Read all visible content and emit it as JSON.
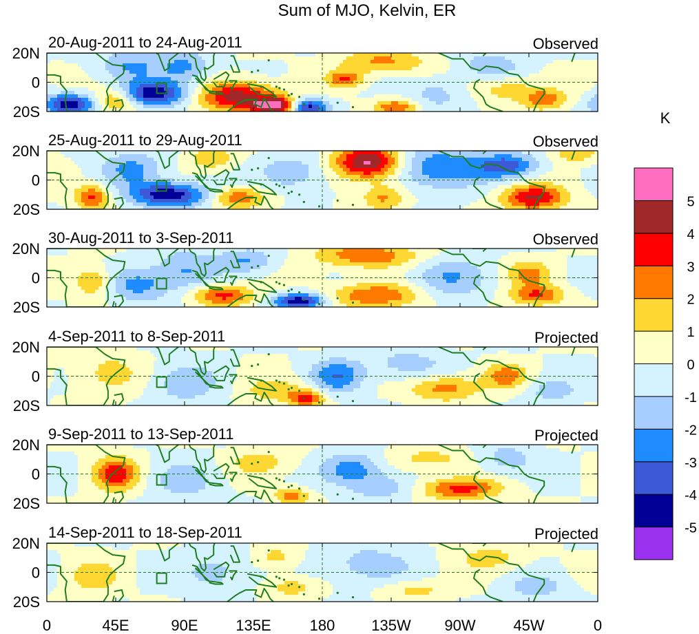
{
  "chart_data": {
    "type": "heatmap",
    "title": "Sum of MJO, Kelvin, ER",
    "colorbar": {
      "unit": "K",
      "levels": [
        -5,
        -4,
        -3,
        -2,
        -1,
        0,
        1,
        2,
        3,
        4,
        5
      ],
      "tick_labels": [
        "-5",
        "-4",
        "-3",
        "-2",
        "-1",
        "0",
        "1",
        "2",
        "3",
        "4",
        "5"
      ],
      "colors": [
        "#9a32f0",
        "#000096",
        "#3c5ad8",
        "#1e8cff",
        "#a6cfff",
        "#d4f3ff",
        "#ffffc8",
        "#ffd732",
        "#ff7800",
        "#ff0000",
        "#a02828",
        "#ff6ec0"
      ]
    },
    "x_ticks": [
      "0",
      "45E",
      "90E",
      "135E",
      "180",
      "135W",
      "90W",
      "45W",
      "0"
    ],
    "x_tick_values": [
      0,
      45,
      90,
      135,
      180,
      225,
      270,
      315,
      360
    ],
    "y_ticks": [
      "20N",
      "0",
      "20S"
    ],
    "y_tick_values": [
      20,
      0,
      -20
    ],
    "xlim": [
      0,
      360
    ],
    "ylim": [
      -20,
      20
    ],
    "panels": [
      {
        "date_range": "20-Aug-2011 to 24-Aug-2011",
        "label": "Observed",
        "blobs": [
          {
            "lon": 15,
            "lat": -15,
            "amp": -4.8,
            "sx": 12,
            "sy": 5
          },
          {
            "lon": 45,
            "lat": -12,
            "amp": 2.6,
            "sx": 10,
            "sy": 6
          },
          {
            "lon": 70,
            "lat": -8,
            "amp": -4.6,
            "sx": 16,
            "sy": 6
          },
          {
            "lon": 55,
            "lat": 12,
            "amp": -2.0,
            "sx": 15,
            "sy": 8
          },
          {
            "lon": 90,
            "lat": 10,
            "amp": -2.2,
            "sx": 12,
            "sy": 8
          },
          {
            "lon": 125,
            "lat": -10,
            "amp": 4.6,
            "sx": 18,
            "sy": 7
          },
          {
            "lon": 150,
            "lat": -16,
            "amp": 5.4,
            "sx": 10,
            "sy": 4
          },
          {
            "lon": 170,
            "lat": -17,
            "amp": -4.8,
            "sx": 9,
            "sy": 4
          },
          {
            "lon": 195,
            "lat": 2,
            "amp": 3.0,
            "sx": 8,
            "sy": 4
          },
          {
            "lon": 220,
            "lat": 14,
            "amp": 2.2,
            "sx": 20,
            "sy": 6
          },
          {
            "lon": 228,
            "lat": -17,
            "amp": 3.0,
            "sx": 10,
            "sy": 4
          },
          {
            "lon": 255,
            "lat": -8,
            "amp": -1.5,
            "sx": 14,
            "sy": 8
          },
          {
            "lon": 300,
            "lat": -5,
            "amp": 1.6,
            "sx": 15,
            "sy": 6
          },
          {
            "lon": 325,
            "lat": -12,
            "amp": 2.6,
            "sx": 10,
            "sy": 5
          },
          {
            "lon": 290,
            "lat": 12,
            "amp": -1.8,
            "sx": 14,
            "sy": 6
          }
        ]
      },
      {
        "date_range": "25-Aug-2011 to 29-Aug-2011",
        "label": "Observed",
        "blobs": [
          {
            "lon": 30,
            "lat": -12,
            "amp": 3.2,
            "sx": 8,
            "sy": 6
          },
          {
            "lon": 80,
            "lat": -10,
            "amp": -4.8,
            "sx": 18,
            "sy": 6
          },
          {
            "lon": 55,
            "lat": 8,
            "amp": -2.2,
            "sx": 14,
            "sy": 8
          },
          {
            "lon": 108,
            "lat": 15,
            "amp": 2.0,
            "sx": 10,
            "sy": 5
          },
          {
            "lon": 125,
            "lat": -12,
            "amp": 3.0,
            "sx": 12,
            "sy": 5
          },
          {
            "lon": 210,
            "lat": 12,
            "amp": 5.4,
            "sx": 15,
            "sy": 8
          },
          {
            "lon": 220,
            "lat": -12,
            "amp": 2.2,
            "sx": 10,
            "sy": 6
          },
          {
            "lon": 255,
            "lat": 8,
            "amp": -3.0,
            "sx": 20,
            "sy": 10
          },
          {
            "lon": 300,
            "lat": 10,
            "amp": -3.5,
            "sx": 14,
            "sy": 6
          },
          {
            "lon": 318,
            "lat": -12,
            "amp": 4.2,
            "sx": 14,
            "sy": 6
          },
          {
            "lon": 160,
            "lat": 5,
            "amp": -2.0,
            "sx": 14,
            "sy": 8
          },
          {
            "lon": 345,
            "lat": 18,
            "amp": 2.0,
            "sx": 10,
            "sy": 4
          }
        ]
      },
      {
        "date_range": "30-Aug-2011 to 3-Sep-2011",
        "label": "Observed",
        "blobs": [
          {
            "lon": 30,
            "lat": -3,
            "amp": 2.4,
            "sx": 8,
            "sy": 7
          },
          {
            "lon": 60,
            "lat": -5,
            "amp": -2.4,
            "sx": 14,
            "sy": 8
          },
          {
            "lon": 90,
            "lat": 5,
            "amp": -2.0,
            "sx": 14,
            "sy": 10
          },
          {
            "lon": 115,
            "lat": -12,
            "amp": 3.4,
            "sx": 14,
            "sy": 5
          },
          {
            "lon": 165,
            "lat": -16,
            "amp": -4.8,
            "sx": 12,
            "sy": 4
          },
          {
            "lon": 210,
            "lat": 15,
            "amp": 2.8,
            "sx": 25,
            "sy": 6
          },
          {
            "lon": 215,
            "lat": -12,
            "amp": 3.0,
            "sx": 22,
            "sy": 6
          },
          {
            "lon": 260,
            "lat": 0,
            "amp": -2.0,
            "sx": 18,
            "sy": 10
          },
          {
            "lon": 315,
            "lat": 3,
            "amp": 2.2,
            "sx": 10,
            "sy": 6
          },
          {
            "lon": 320,
            "lat": -12,
            "amp": 3.0,
            "sx": 12,
            "sy": 5
          },
          {
            "lon": 130,
            "lat": 12,
            "amp": -2.0,
            "sx": 14,
            "sy": 6
          }
        ]
      },
      {
        "date_range": "4-Sep-2011 to 8-Sep-2011",
        "label": "Projected",
        "blobs": [
          {
            "lon": 40,
            "lat": 2,
            "amp": 1.4,
            "sx": 15,
            "sy": 10
          },
          {
            "lon": 90,
            "lat": -5,
            "amp": -1.6,
            "sx": 16,
            "sy": 10
          },
          {
            "lon": 150,
            "lat": -10,
            "amp": 1.6,
            "sx": 15,
            "sy": 6
          },
          {
            "lon": 170,
            "lat": -15,
            "amp": 3.2,
            "sx": 8,
            "sy": 4
          },
          {
            "lon": 190,
            "lat": 0,
            "amp": -2.8,
            "sx": 12,
            "sy": 8
          },
          {
            "lon": 235,
            "lat": 8,
            "amp": -1.5,
            "sx": 18,
            "sy": 8
          },
          {
            "lon": 260,
            "lat": -8,
            "amp": 2.6,
            "sx": 16,
            "sy": 6
          },
          {
            "lon": 300,
            "lat": 0,
            "amp": 2.4,
            "sx": 10,
            "sy": 6
          },
          {
            "lon": 330,
            "lat": -10,
            "amp": -1.5,
            "sx": 12,
            "sy": 6
          }
        ]
      },
      {
        "date_range": "9-Sep-2011 to 13-Sep-2011",
        "label": "Projected",
        "blobs": [
          {
            "lon": 45,
            "lat": 0,
            "amp": 3.6,
            "sx": 10,
            "sy": 8
          },
          {
            "lon": 90,
            "lat": -5,
            "amp": -1.4,
            "sx": 16,
            "sy": 10
          },
          {
            "lon": 160,
            "lat": -15,
            "amp": 2.4,
            "sx": 8,
            "sy": 4
          },
          {
            "lon": 140,
            "lat": 8,
            "amp": 1.4,
            "sx": 16,
            "sy": 6
          },
          {
            "lon": 200,
            "lat": 3,
            "amp": -2.8,
            "sx": 14,
            "sy": 8
          },
          {
            "lon": 220,
            "lat": -10,
            "amp": -1.5,
            "sx": 14,
            "sy": 6
          },
          {
            "lon": 270,
            "lat": -10,
            "amp": 3.4,
            "sx": 18,
            "sy": 5
          },
          {
            "lon": 300,
            "lat": 10,
            "amp": -1.5,
            "sx": 14,
            "sy": 8
          },
          {
            "lon": 250,
            "lat": 10,
            "amp": 1.4,
            "sx": 20,
            "sy": 6
          }
        ]
      },
      {
        "date_range": "14-Sep-2011 to 18-Sep-2011",
        "label": "Projected",
        "blobs": [
          {
            "lon": 30,
            "lat": -3,
            "amp": 1.6,
            "sx": 12,
            "sy": 8
          },
          {
            "lon": 110,
            "lat": 0,
            "amp": -1.5,
            "sx": 16,
            "sy": 10
          },
          {
            "lon": 150,
            "lat": 10,
            "amp": 1.4,
            "sx": 10,
            "sy": 6
          },
          {
            "lon": 160,
            "lat": -10,
            "amp": 1.6,
            "sx": 12,
            "sy": 5
          },
          {
            "lon": 210,
            "lat": 5,
            "amp": -1.6,
            "sx": 20,
            "sy": 10
          },
          {
            "lon": 240,
            "lat": -12,
            "amp": 1.4,
            "sx": 16,
            "sy": 5
          },
          {
            "lon": 290,
            "lat": 10,
            "amp": 1.4,
            "sx": 16,
            "sy": 6
          },
          {
            "lon": 320,
            "lat": -10,
            "amp": -1.5,
            "sx": 14,
            "sy": 6
          }
        ]
      }
    ]
  }
}
